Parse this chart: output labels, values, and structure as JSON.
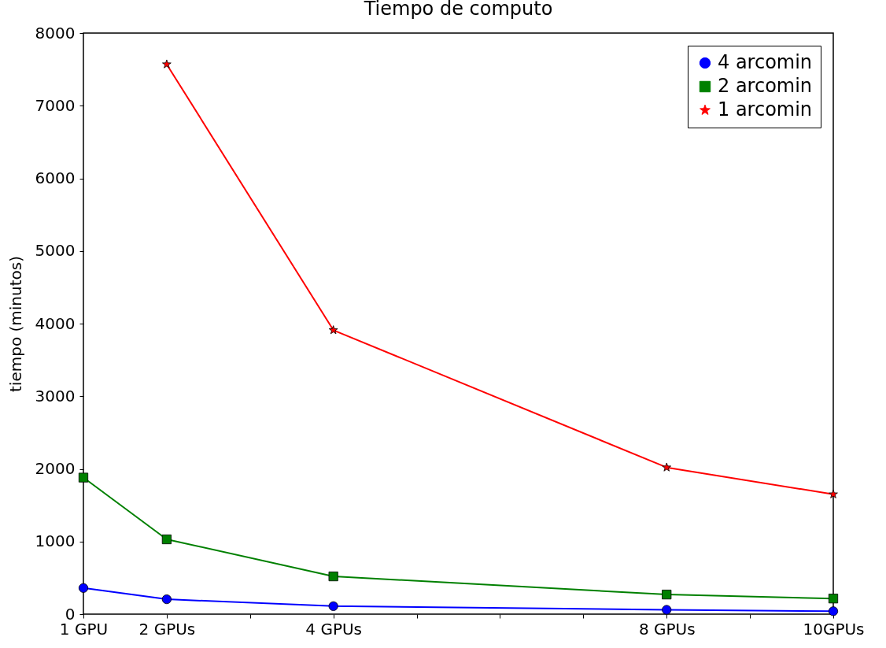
{
  "chart_data": {
    "type": "line",
    "title": "Tiempo de computo",
    "ylabel": "tiempo (minutos)",
    "x": [
      1,
      2,
      4,
      8,
      10
    ],
    "series": [
      {
        "name": "4 arcomin",
        "color": "#0000ff",
        "marker": "circle",
        "values": [
          360,
          205,
          110,
          60,
          40
        ]
      },
      {
        "name": "2 arcomin",
        "color": "#008000",
        "marker": "square",
        "values": [
          1880,
          1030,
          520,
          270,
          215
        ]
      },
      {
        "name": "1 arcomin",
        "color": "#ff0000",
        "marker": "star",
        "x": [
          2,
          4,
          8,
          10
        ],
        "values": [
          7570,
          3910,
          2020,
          1650
        ]
      }
    ],
    "xlim": [
      1,
      10
    ],
    "xticks": [
      {
        "value": 1,
        "label": "1 GPU"
      },
      {
        "value": 2,
        "label": "2 GPUs"
      },
      {
        "value": 3,
        "label": null
      },
      {
        "value": 4,
        "label": "4 GPUs"
      },
      {
        "value": 5,
        "label": null
      },
      {
        "value": 6,
        "label": null
      },
      {
        "value": 7,
        "label": null
      },
      {
        "value": 8,
        "label": "8 GPUs"
      },
      {
        "value": 9,
        "label": null
      },
      {
        "value": 10,
        "label": "10GPUs"
      }
    ],
    "ylim": [
      0,
      8000
    ],
    "yticks": [
      0,
      1000,
      2000,
      3000,
      4000,
      5000,
      6000,
      7000,
      8000
    ],
    "grid": false,
    "legend": "top right",
    "line_style": "solid"
  }
}
